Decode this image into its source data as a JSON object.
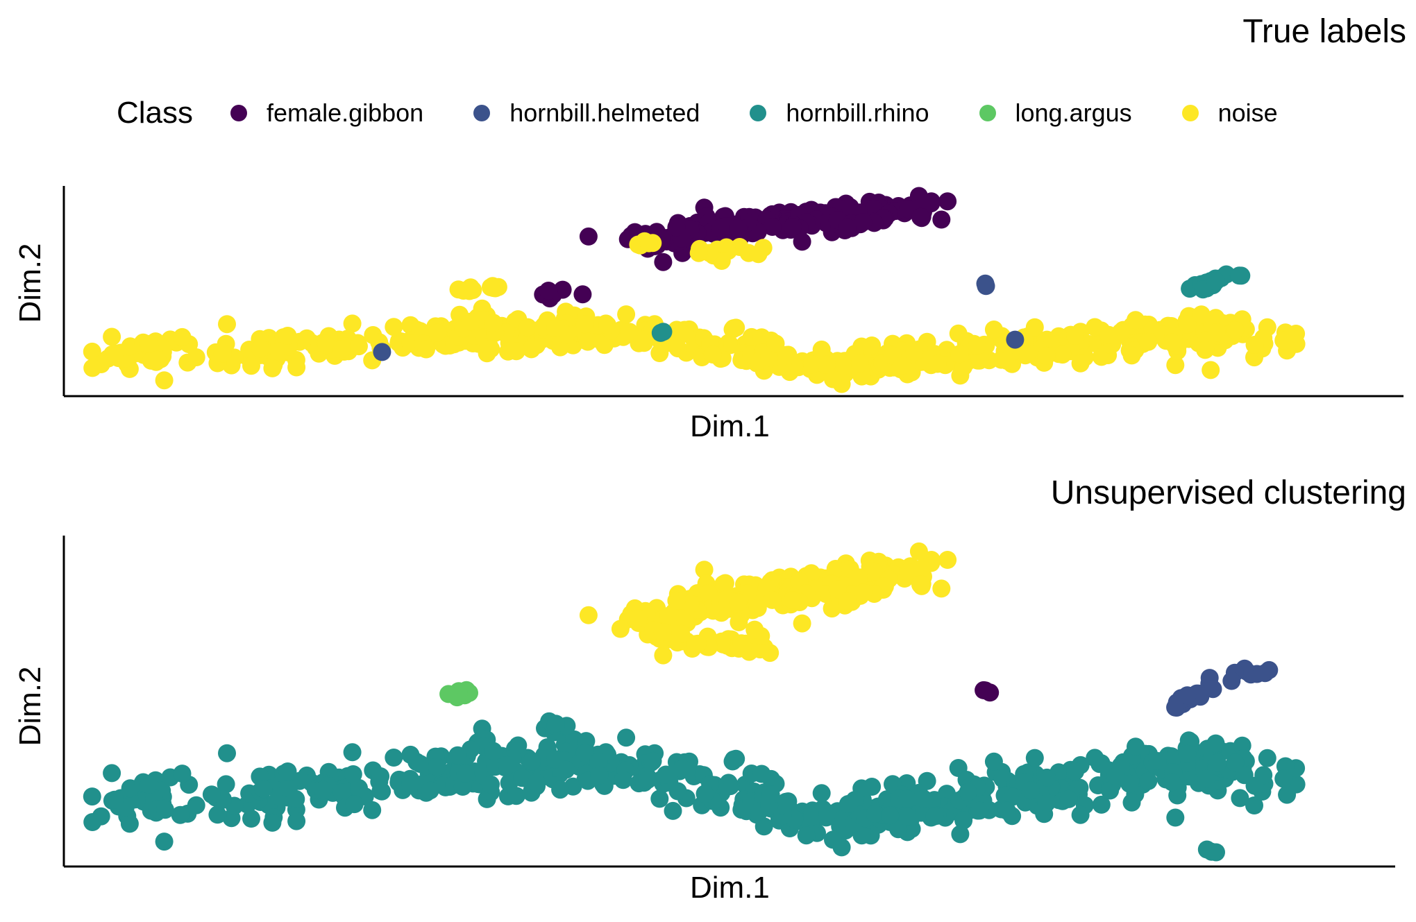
{
  "chart_data": [
    {
      "type": "scatter",
      "title": "True labels",
      "xlabel": "Dim.1",
      "ylabel": "Dim.2",
      "legend": {
        "title": "Class",
        "placement": "top",
        "entries": [
          {
            "name": "female.gibbon",
            "color": "#440154"
          },
          {
            "name": "hornbill.helmeted",
            "color": "#3B528B"
          },
          {
            "name": "hornbill.rhino",
            "color": "#21908C"
          },
          {
            "name": "long.argus",
            "color": "#5DC863"
          },
          {
            "name": "noise",
            "color": "#FDE725"
          }
        ]
      },
      "xlim": [
        0,
        100
      ],
      "ylim": [
        0,
        100
      ],
      "ticks_shown": false,
      "grid": false,
      "clusters": [
        {
          "series": "female.gibbon",
          "path": [
            [
              43,
              73
            ],
            [
              48,
              78
            ],
            [
              53,
              83
            ],
            [
              58,
              86
            ],
            [
              62,
              88
            ],
            [
              65,
              90
            ]
          ],
          "spread": 3.0,
          "n": 150
        },
        {
          "series": "female.gibbon",
          "path": [
            [
              44,
              75
            ],
            [
              49,
              79
            ],
            [
              55,
              81
            ],
            [
              60,
              80
            ]
          ],
          "spread": 2.2,
          "n": 70
        },
        {
          "series": "female.gibbon",
          "path": [
            [
              36,
              48
            ],
            [
              39,
              51
            ]
          ],
          "spread": 1.0,
          "n": 8
        },
        {
          "series": "noise",
          "path": [
            [
              4,
              20
            ],
            [
              12,
              21
            ],
            [
              20,
              24
            ],
            [
              28,
              28
            ],
            [
              35,
              30
            ],
            [
              40,
              33
            ],
            [
              45,
              27
            ],
            [
              52,
              21
            ],
            [
              58,
              14
            ],
            [
              64,
              17
            ],
            [
              70,
              22
            ],
            [
              76,
              24
            ],
            [
              82,
              29
            ],
            [
              87,
              30
            ],
            [
              92,
              25
            ]
          ],
          "spread": 4.2,
          "n": 600
        },
        {
          "series": "noise",
          "path": [
            [
              30,
              51
            ],
            [
              33,
              52
            ]
          ],
          "spread": 0.8,
          "n": 10
        },
        {
          "series": "noise",
          "path": [
            [
              43,
              73
            ],
            [
              45,
              73
            ]
          ],
          "spread": 0.8,
          "n": 5
        },
        {
          "series": "noise",
          "path": [
            [
              47,
              70
            ],
            [
              49,
              67
            ],
            [
              51,
              70
            ],
            [
              53,
              70
            ]
          ],
          "spread": 1.5,
          "n": 12
        },
        {
          "series": "noise",
          "path": [
            [
              86,
              50
            ],
            [
              87,
              5
            ]
          ],
          "spread": 0.5,
          "n": 3
        },
        {
          "series": "hornbill.rhino",
          "path": [
            [
              85,
              50
            ],
            [
              88,
              57
            ],
            [
              90,
              59
            ]
          ],
          "spread": 1.0,
          "n": 16
        },
        {
          "series": "hornbill.rhino",
          "path": [
            [
              45,
              30
            ]
          ],
          "spread": 0.6,
          "n": 2
        },
        {
          "series": "hornbill.helmeted",
          "path": [
            [
              70,
              53
            ]
          ],
          "spread": 0.4,
          "n": 2
        },
        {
          "series": "hornbill.helmeted",
          "path": [
            [
              24,
              21
            ]
          ],
          "spread": 0.4,
          "n": 1
        },
        {
          "series": "hornbill.helmeted",
          "path": [
            [
              72,
              27
            ]
          ],
          "spread": 0.4,
          "n": 1
        }
      ]
    },
    {
      "type": "scatter",
      "title": "Unsupervised clustering",
      "xlabel": "Dim.1",
      "ylabel": "Dim.2",
      "xlim": [
        0,
        100
      ],
      "ylim": [
        0,
        100
      ],
      "ticks_shown": false,
      "grid": false,
      "series_colors": {
        "cluster.1": "#440154",
        "cluster.2": "#3B528B",
        "cluster.3": "#21908C",
        "cluster.4": "#5DC863",
        "cluster.5": "#FDE725"
      },
      "clusters": [
        {
          "series": "cluster.5",
          "path": [
            [
              43,
              73
            ],
            [
              48,
              78
            ],
            [
              53,
              83
            ],
            [
              58,
              86
            ],
            [
              62,
              88
            ],
            [
              65,
              90
            ]
          ],
          "spread": 3.0,
          "n": 150
        },
        {
          "series": "cluster.5",
          "path": [
            [
              44,
              75
            ],
            [
              49,
              79
            ],
            [
              55,
              81
            ],
            [
              60,
              80
            ]
          ],
          "spread": 2.2,
          "n": 70
        },
        {
          "series": "cluster.5",
          "path": [
            [
              43,
              73
            ],
            [
              47,
              70
            ],
            [
              50,
              66
            ],
            [
              53,
              70
            ]
          ],
          "spread": 2.0,
          "n": 40
        },
        {
          "series": "cluster.3",
          "path": [
            [
              4,
              20
            ],
            [
              12,
              21
            ],
            [
              20,
              24
            ],
            [
              28,
              28
            ],
            [
              35,
              30
            ],
            [
              40,
              33
            ],
            [
              45,
              27
            ],
            [
              52,
              21
            ],
            [
              58,
              14
            ],
            [
              64,
              17
            ],
            [
              70,
              22
            ],
            [
              76,
              24
            ],
            [
              82,
              29
            ],
            [
              87,
              30
            ],
            [
              92,
              25
            ]
          ],
          "spread": 4.2,
          "n": 620
        },
        {
          "series": "cluster.3",
          "path": [
            [
              36,
              41
            ],
            [
              38,
              44
            ]
          ],
          "spread": 0.8,
          "n": 6
        },
        {
          "series": "cluster.3",
          "path": [
            [
              87,
              5
            ]
          ],
          "spread": 0.5,
          "n": 3
        },
        {
          "series": "cluster.4",
          "path": [
            [
              29,
              52
            ],
            [
              31,
              53
            ]
          ],
          "spread": 0.6,
          "n": 10
        },
        {
          "series": "cluster.1",
          "path": [
            [
              70,
              53
            ]
          ],
          "spread": 0.4,
          "n": 3
        },
        {
          "series": "cluster.2",
          "path": [
            [
              84,
              48
            ],
            [
              86,
              53
            ],
            [
              89,
              58
            ],
            [
              91,
              60
            ]
          ],
          "spread": 0.9,
          "n": 24
        }
      ]
    }
  ]
}
